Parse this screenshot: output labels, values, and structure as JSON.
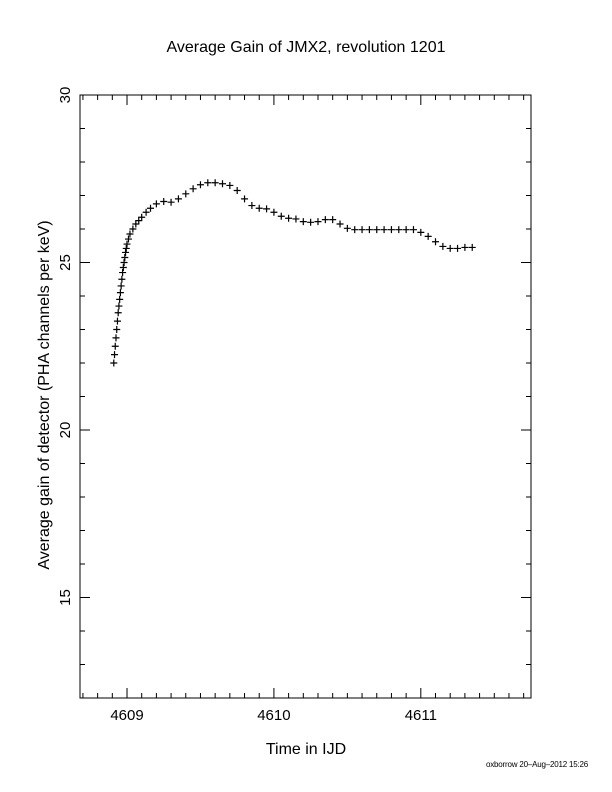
{
  "chart_data": {
    "type": "scatter",
    "title": "Average Gain of JMX2, revolution 1201",
    "xlabel": "Time in IJD",
    "ylabel": "Average gain of detector (PHA channels per keV)",
    "xlim": [
      4608.68,
      4611.75
    ],
    "ylim": [
      12.0,
      30.0
    ],
    "xticks": [
      4609,
      4610,
      4611
    ],
    "xtick_labels": [
      "4609",
      "4610",
      "4611"
    ],
    "yticks": [
      15,
      20,
      25,
      30
    ],
    "ytick_labels": [
      "15",
      "20",
      "25",
      "30"
    ],
    "grid": false,
    "marker": "+",
    "series": [
      {
        "x": [
          4608.91,
          4608.915,
          4608.92,
          4608.925,
          4608.93,
          4608.935,
          4608.94,
          4608.945,
          4608.95,
          4608.955,
          4608.96,
          4608.965,
          4608.97,
          4608.975,
          4608.98,
          4608.985,
          4608.99,
          4608.995,
          4609.0,
          4609.01,
          4609.02,
          4609.04,
          4609.06,
          4609.08,
          4609.1,
          4609.13,
          4609.16,
          4609.2,
          4609.25,
          4609.3,
          4609.35,
          4609.4,
          4609.45,
          4609.5,
          4609.55,
          4609.6,
          4609.65,
          4609.7,
          4609.75,
          4609.8,
          4609.85,
          4609.9,
          4609.95,
          4610.0,
          4610.05,
          4610.1,
          4610.15,
          4610.2,
          4610.25,
          4610.3,
          4610.35,
          4610.4,
          4610.45,
          4610.5,
          4610.55,
          4610.6,
          4610.65,
          4610.7,
          4610.75,
          4610.8,
          4610.85,
          4610.9,
          4610.95,
          4611.0,
          4611.05,
          4611.1,
          4611.15,
          4611.2,
          4611.25,
          4611.3,
          4611.35
        ],
        "y": [
          22.0,
          22.25,
          22.5,
          22.75,
          23.0,
          23.25,
          23.5,
          23.7,
          23.9,
          24.1,
          24.3,
          24.5,
          24.7,
          24.85,
          25.0,
          25.15,
          25.3,
          25.42,
          25.55,
          25.7,
          25.85,
          26.0,
          26.15,
          26.25,
          26.35,
          26.5,
          26.62,
          26.75,
          26.82,
          26.8,
          26.9,
          27.05,
          27.2,
          27.32,
          27.38,
          27.38,
          27.35,
          27.3,
          27.15,
          26.9,
          26.7,
          26.62,
          26.6,
          26.5,
          26.38,
          26.32,
          26.3,
          26.22,
          26.2,
          26.22,
          26.28,
          26.28,
          26.15,
          26.02,
          25.98,
          25.98,
          25.98,
          25.98,
          25.98,
          25.98,
          25.98,
          25.98,
          25.98,
          25.9,
          25.78,
          25.62,
          25.48,
          25.42,
          25.42,
          25.45,
          25.45
        ]
      }
    ]
  },
  "footer": {
    "text": "oxborrow 20–Aug–2012 15:26"
  }
}
